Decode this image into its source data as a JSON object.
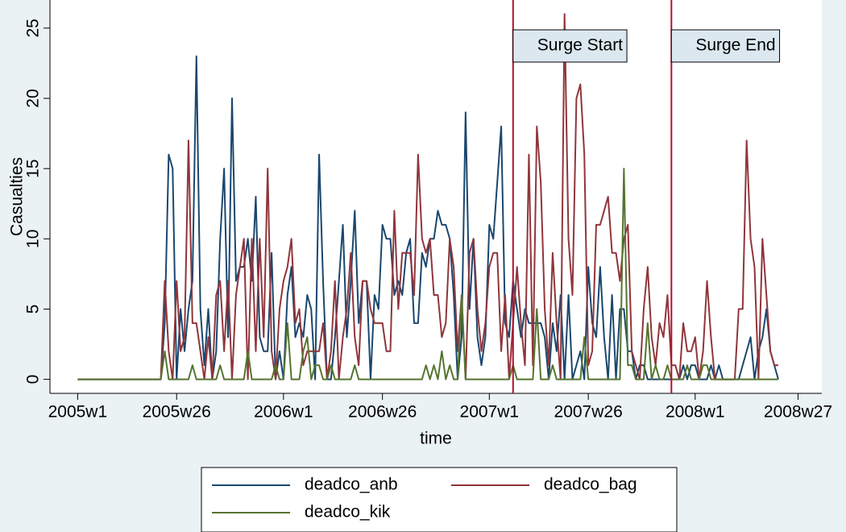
{
  "chart_data": {
    "type": "line",
    "ylabel": "Casualties",
    "xlabel": "time",
    "x": [
      0,
      1,
      2,
      3,
      4,
      5,
      6,
      7,
      8,
      9,
      10,
      11,
      12,
      13,
      14,
      15,
      16,
      17,
      18,
      19,
      20,
      21,
      22,
      23,
      24,
      25,
      26,
      27,
      28,
      29,
      30,
      31,
      32,
      33,
      34,
      35,
      36,
      37,
      38,
      39,
      40,
      41,
      42,
      43,
      44,
      45,
      46,
      47,
      48,
      49,
      50,
      51,
      52,
      53,
      54,
      55,
      56,
      57,
      58,
      59,
      60,
      61,
      62,
      63,
      64,
      65,
      66,
      67,
      68,
      69,
      70,
      71,
      72,
      73,
      74,
      75,
      76,
      77,
      78,
      79,
      80,
      81,
      82,
      83,
      84,
      85,
      86,
      87,
      88,
      89,
      90,
      91,
      92,
      93,
      94,
      95,
      96,
      97,
      98,
      99,
      100,
      101,
      102,
      103,
      104,
      105,
      106,
      107,
      108,
      109,
      110,
      111,
      112,
      113,
      114,
      115,
      116,
      117,
      118,
      119,
      120,
      121,
      122,
      123,
      124,
      125,
      126,
      127,
      128,
      129,
      130,
      131,
      132,
      133,
      134,
      135,
      136,
      137,
      138,
      139,
      140,
      141,
      142,
      143,
      144,
      145,
      146,
      147,
      148,
      149,
      150,
      151,
      152,
      153,
      154,
      155,
      156,
      157,
      158,
      159,
      160,
      161,
      162,
      163,
      164,
      165,
      166,
      167,
      168,
      169,
      170,
      171,
      172,
      173,
      174,
      175,
      176,
      177
    ],
    "series": [
      {
        "name": "deadco_anb",
        "color": "#1a476f",
        "values": [
          0,
          0,
          0,
          0,
          0,
          0,
          0,
          0,
          0,
          0,
          0,
          0,
          0,
          0,
          0,
          0,
          0,
          0,
          0,
          0,
          0,
          0,
          4,
          16,
          15,
          0,
          5,
          2,
          5,
          7,
          23,
          5,
          1,
          5,
          0,
          2,
          10,
          15,
          3,
          20,
          7,
          8,
          8,
          10,
          7,
          13,
          3,
          2,
          2,
          9,
          0,
          2,
          0,
          6,
          8,
          3,
          4,
          3,
          6,
          5,
          0,
          16,
          7,
          0,
          0,
          3,
          7,
          11,
          3,
          7,
          12,
          4,
          7,
          7,
          0,
          6,
          5,
          11,
          10,
          10,
          6,
          7,
          6,
          9,
          10,
          4,
          4,
          9,
          8,
          10,
          10,
          12,
          11,
          11,
          10,
          6,
          0,
          3,
          19,
          5,
          10,
          3,
          1,
          3,
          11,
          10,
          14,
          18,
          4,
          3,
          7,
          5,
          3,
          5,
          4,
          4,
          4,
          4,
          3,
          0,
          4,
          2,
          6,
          0,
          6,
          0,
          1,
          2,
          0,
          8,
          4,
          3,
          8,
          3,
          0,
          6,
          0,
          5,
          5,
          2,
          2,
          0,
          1,
          1,
          0,
          0,
          0,
          0,
          0,
          0,
          0,
          0,
          0,
          1,
          0,
          1,
          1,
          0,
          0,
          0,
          1,
          0,
          1,
          0,
          0,
          0,
          0,
          0,
          1,
          2,
          3,
          0,
          2,
          3,
          5,
          2,
          1,
          0
        ]
      },
      {
        "name": "deadco_bag",
        "color": "#90353b",
        "values": [
          0,
          0,
          0,
          0,
          0,
          0,
          0,
          0,
          0,
          0,
          0,
          0,
          0,
          0,
          0,
          0,
          0,
          0,
          0,
          0,
          0,
          0,
          7,
          2,
          0,
          7,
          2,
          3,
          17,
          4,
          4,
          2,
          0,
          3,
          0,
          6,
          7,
          2,
          7,
          0,
          6,
          8,
          10,
          0,
          10,
          2,
          10,
          3,
          15,
          2,
          0,
          5,
          7,
          8,
          10,
          4,
          5,
          1,
          2,
          2,
          2,
          2,
          4,
          0,
          2,
          7,
          0,
          3,
          5,
          9,
          3,
          1,
          7,
          7,
          5,
          4,
          4,
          4,
          2,
          2,
          12,
          5,
          9,
          9,
          9,
          6,
          16,
          10,
          9,
          10,
          6,
          6,
          3,
          4,
          10,
          8,
          2,
          6,
          0,
          9,
          10,
          5,
          2,
          4,
          8,
          9,
          9,
          2,
          6,
          0,
          4,
          8,
          4,
          1,
          16,
          1,
          18,
          14,
          5,
          1,
          9,
          4,
          0,
          26,
          10,
          6,
          20,
          21,
          16,
          1,
          2,
          11,
          11,
          12,
          13,
          9,
          9,
          7,
          10,
          11,
          2,
          1,
          0,
          5,
          8,
          3,
          1,
          4,
          3,
          6,
          1,
          1,
          0,
          4,
          2,
          2,
          3,
          0,
          2,
          7,
          3,
          0,
          0,
          0,
          0,
          0,
          0,
          5,
          5,
          17,
          10,
          8,
          0,
          10,
          6,
          2,
          1,
          1
        ]
      },
      {
        "name": "deadco_kik",
        "color": "#55752f",
        "values": [
          0,
          0,
          0,
          0,
          0,
          0,
          0,
          0,
          0,
          0,
          0,
          0,
          0,
          0,
          0,
          0,
          0,
          0,
          0,
          0,
          0,
          0,
          2,
          0,
          0,
          0,
          0,
          0,
          0,
          1,
          0,
          0,
          0,
          0,
          0,
          0,
          1,
          0,
          0,
          0,
          0,
          0,
          0,
          2,
          0,
          0,
          0,
          0,
          0,
          0,
          1,
          0,
          0,
          4,
          0,
          0,
          0,
          2,
          3,
          0,
          1,
          1,
          0,
          0,
          1,
          0,
          0,
          0,
          0,
          0,
          1,
          0,
          0,
          0,
          0,
          0,
          0,
          0,
          0,
          0,
          0,
          0,
          0,
          0,
          0,
          0,
          0,
          0,
          1,
          0,
          1,
          0,
          2,
          0,
          1,
          0,
          0,
          6,
          0,
          0,
          0,
          0,
          0,
          0,
          0,
          0,
          0,
          0,
          0,
          0,
          1,
          0,
          0,
          0,
          0,
          0,
          5,
          0,
          0,
          0,
          1,
          0,
          0,
          0,
          0,
          0,
          0,
          0,
          3,
          0,
          0,
          0,
          0,
          0,
          0,
          0,
          0,
          0,
          15,
          1,
          1,
          0,
          0,
          0,
          4,
          0,
          1,
          0,
          0,
          1,
          0,
          0,
          0,
          0,
          1,
          0,
          0,
          0,
          1,
          1,
          0,
          0,
          0,
          0,
          0,
          0,
          0,
          0,
          0,
          0,
          0,
          0,
          0,
          0,
          0,
          0,
          0,
          0
        ]
      }
    ],
    "xlim": [
      -7,
      188
    ],
    "xticks": [
      {
        "value": 0,
        "label": "2005w1"
      },
      {
        "value": 25,
        "label": "2005w26"
      },
      {
        "value": 52,
        "label": "2006w1"
      },
      {
        "value": 77,
        "label": "2006w26"
      },
      {
        "value": 104,
        "label": "2007w1"
      },
      {
        "value": 129,
        "label": "2007w26"
      },
      {
        "value": 156,
        "label": "2008w1"
      },
      {
        "value": 182,
        "label": "2008w27"
      }
    ],
    "ylim": [
      -1,
      27
    ],
    "yticks": [
      0,
      5,
      10,
      15,
      20,
      25
    ],
    "annotations": [
      {
        "x": 110,
        "label": "Surge Start",
        "color": "#b0112e"
      },
      {
        "x": 150,
        "label": "Surge End",
        "color": "#b0112e"
      }
    ]
  }
}
